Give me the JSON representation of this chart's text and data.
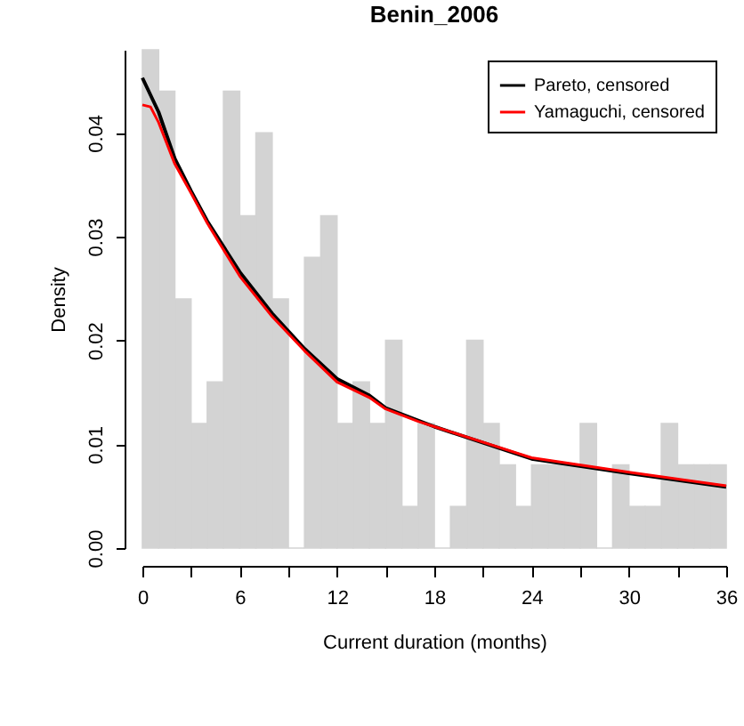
{
  "chart_data": {
    "type": "histogram",
    "title": "Benin_2006",
    "xlabel": "Current duration (months)",
    "ylabel": "Density",
    "bins": [
      0,
      1,
      2,
      3,
      4,
      5,
      6,
      7,
      8,
      9,
      10,
      11,
      12,
      13,
      14,
      15,
      16,
      17,
      18,
      19,
      20,
      21,
      22,
      23,
      24,
      25,
      26,
      27,
      28,
      29,
      30,
      31,
      32,
      33,
      34,
      35,
      36
    ],
    "values": [
      0.048,
      0.044,
      0.024,
      0.012,
      0.016,
      0.044,
      0.032,
      0.04,
      0.024,
      0,
      0.028,
      0.032,
      0.012,
      0.016,
      0.012,
      0.02,
      0.004,
      0.012,
      0,
      0.004,
      0.02,
      0.012,
      0.008,
      0.004,
      0.008,
      0.008,
      0.008,
      0.012,
      0,
      0.008,
      0.004,
      0.004,
      0.012,
      0.008,
      0.008,
      0.008
    ],
    "color": "#d3d3d3",
    "series": [
      {
        "name": "Pareto, censored",
        "color": "#000000",
        "type": "line",
        "x": [
          0,
          1,
          2,
          3,
          4,
          6,
          8,
          10,
          12,
          14,
          15,
          17,
          18,
          24,
          30,
          36
        ],
        "values": [
          0.0453,
          0.042,
          0.0375,
          0.0344,
          0.0315,
          0.0266,
          0.0226,
          0.0192,
          0.0163,
          0.0147,
          0.0135,
          0.0123,
          0.0117,
          0.0086,
          0.0072,
          0.0059
        ]
      },
      {
        "name": "Yamaguchi, censored",
        "color": "#ff0000",
        "type": "line",
        "x": [
          0,
          0.5,
          1,
          2,
          3,
          4,
          6,
          8,
          10,
          12,
          14,
          15,
          17,
          18,
          24,
          30,
          36
        ],
        "values": [
          0.0427,
          0.0425,
          0.041,
          0.037,
          0.0342,
          0.0313,
          0.0262,
          0.0223,
          0.019,
          0.016,
          0.0145,
          0.0134,
          0.0122,
          0.0117,
          0.0087,
          0.0073,
          0.006
        ]
      }
    ],
    "xlim": [
      0,
      36
    ],
    "ylim": [
      0,
      0.048
    ],
    "xticks": [
      0,
      {
        "value": 3,
        "label": null
      },
      6,
      {
        "value": 9,
        "label": null
      },
      12,
      {
        "value": 15,
        "label": null
      },
      18,
      {
        "value": 21,
        "label": null
      },
      24,
      {
        "value": 27,
        "label": null
      },
      30,
      {
        "value": 33,
        "label": null
      },
      36
    ],
    "yticks": [
      {
        "value": 0,
        "label": "0.00"
      },
      {
        "value": 0.01,
        "label": "0.01"
      },
      {
        "value": 0.02,
        "label": "0.02"
      },
      {
        "value": 0.03,
        "label": "0.03"
      },
      {
        "value": 0.04,
        "label": "0.04"
      }
    ],
    "legend": "top right",
    "grid": false
  }
}
